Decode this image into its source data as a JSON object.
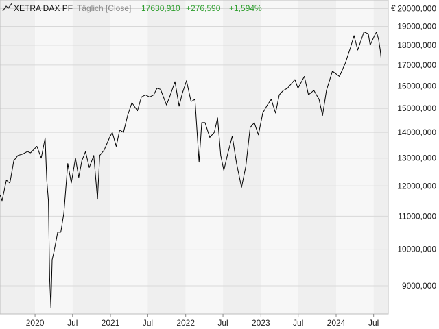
{
  "header": {
    "icon": "line-chart-icon",
    "instrument": "XETRA DAX PF",
    "interval": "Täglich [Close]",
    "last_value": "17630,910",
    "change_abs": "+276,590",
    "change_pct": "+1,594%"
  },
  "colors": {
    "positive": "#2e9e2e",
    "muted": "#888888",
    "band_dark": "#efefef",
    "band_light": "#f7f7f7",
    "grid": "#d8d8d8",
    "line": "#000000"
  },
  "chart_data": {
    "type": "line",
    "title": "",
    "xlabel": "",
    "ylabel": "€",
    "y_scale": "log",
    "ylim": [
      8300,
      20500
    ],
    "x_range": [
      "2019-07-15",
      "2024-09-10"
    ],
    "y_ticks": [
      {
        "value": 9000,
        "label": "9000,000"
      },
      {
        "value": 10000,
        "label": "10000,000"
      },
      {
        "value": 11000,
        "label": "11000,000"
      },
      {
        "value": 12000,
        "label": "12000,000"
      },
      {
        "value": 13000,
        "label": "13000,000"
      },
      {
        "value": 14000,
        "label": "14000,000"
      },
      {
        "value": 15000,
        "label": "15000,000"
      },
      {
        "value": 16000,
        "label": "16000,000"
      },
      {
        "value": 17000,
        "label": "17000,000"
      },
      {
        "value": 18000,
        "label": "18000,000"
      },
      {
        "value": 19000,
        "label": "19000,000"
      },
      {
        "value": 20000,
        "label": "20000,000"
      }
    ],
    "x_ticks": [
      {
        "date": "2020-01-01",
        "label": "2020"
      },
      {
        "date": "2020-07-01",
        "label": "Jul"
      },
      {
        "date": "2021-01-01",
        "label": "2021"
      },
      {
        "date": "2021-07-01",
        "label": "Jul"
      },
      {
        "date": "2022-01-01",
        "label": "2022"
      },
      {
        "date": "2022-07-01",
        "label": "Jul"
      },
      {
        "date": "2023-01-01",
        "label": "2023"
      },
      {
        "date": "2023-07-01",
        "label": "Jul"
      },
      {
        "date": "2024-01-01",
        "label": "2024"
      },
      {
        "date": "2024-07-01",
        "label": "Jul"
      }
    ],
    "series": [
      {
        "values": [
          [
            "2019-07-15",
            11700
          ],
          [
            "2019-07-25",
            11500
          ],
          [
            "2019-08-15",
            12200
          ],
          [
            "2019-09-01",
            12100
          ],
          [
            "2019-09-20",
            12900
          ],
          [
            "2019-10-10",
            13100
          ],
          [
            "2019-11-01",
            13150
          ],
          [
            "2019-11-25",
            13250
          ],
          [
            "2019-12-10",
            13200
          ],
          [
            "2020-01-10",
            13450
          ],
          [
            "2020-01-31",
            13000
          ],
          [
            "2020-02-19",
            13780
          ],
          [
            "2020-02-27",
            12200
          ],
          [
            "2020-03-06",
            11500
          ],
          [
            "2020-03-12",
            9200
          ],
          [
            "2020-03-18",
            8450
          ],
          [
            "2020-03-24",
            9700
          ],
          [
            "2020-04-01",
            9900
          ],
          [
            "2020-04-20",
            10500
          ],
          [
            "2020-05-05",
            10500
          ],
          [
            "2020-05-20",
            11100
          ],
          [
            "2020-06-08",
            12800
          ],
          [
            "2020-06-25",
            12100
          ],
          [
            "2020-07-15",
            13000
          ],
          [
            "2020-07-31",
            12300
          ],
          [
            "2020-08-15",
            12900
          ],
          [
            "2020-09-02",
            13250
          ],
          [
            "2020-09-20",
            12650
          ],
          [
            "2020-10-12",
            13100
          ],
          [
            "2020-10-30",
            11550
          ],
          [
            "2020-11-10",
            13100
          ],
          [
            "2020-12-01",
            13300
          ],
          [
            "2020-12-28",
            13800
          ],
          [
            "2021-01-10",
            14000
          ],
          [
            "2021-01-29",
            13450
          ],
          [
            "2021-02-15",
            14100
          ],
          [
            "2021-03-05",
            14000
          ],
          [
            "2021-03-25",
            14700
          ],
          [
            "2021-04-15",
            15250
          ],
          [
            "2021-05-12",
            14900
          ],
          [
            "2021-05-31",
            15500
          ],
          [
            "2021-06-20",
            15600
          ],
          [
            "2021-07-10",
            15500
          ],
          [
            "2021-07-30",
            15600
          ],
          [
            "2021-08-15",
            15900
          ],
          [
            "2021-09-01",
            15850
          ],
          [
            "2021-09-30",
            15150
          ],
          [
            "2021-10-15",
            15500
          ],
          [
            "2021-11-10",
            16200
          ],
          [
            "2021-11-30",
            15100
          ],
          [
            "2021-12-15",
            15650
          ],
          [
            "2022-01-05",
            16250
          ],
          [
            "2022-01-27",
            15300
          ],
          [
            "2022-02-15",
            15400
          ],
          [
            "2022-03-07",
            12850
          ],
          [
            "2022-03-20",
            14400
          ],
          [
            "2022-04-05",
            14400
          ],
          [
            "2022-04-28",
            13800
          ],
          [
            "2022-05-20",
            14000
          ],
          [
            "2022-06-05",
            14600
          ],
          [
            "2022-06-20",
            13100
          ],
          [
            "2022-07-05",
            12550
          ],
          [
            "2022-07-25",
            13200
          ],
          [
            "2022-08-15",
            13850
          ],
          [
            "2022-09-05",
            12800
          ],
          [
            "2022-09-29",
            11950
          ],
          [
            "2022-10-20",
            12700
          ],
          [
            "2022-11-10",
            14200
          ],
          [
            "2022-11-30",
            14400
          ],
          [
            "2022-12-20",
            13900
          ],
          [
            "2023-01-10",
            14800
          ],
          [
            "2023-02-01",
            15150
          ],
          [
            "2023-02-20",
            15400
          ],
          [
            "2023-03-13",
            14800
          ],
          [
            "2023-03-31",
            15600
          ],
          [
            "2023-04-20",
            15800
          ],
          [
            "2023-05-10",
            15900
          ],
          [
            "2023-06-15",
            16300
          ],
          [
            "2023-06-30",
            15900
          ],
          [
            "2023-07-31",
            16450
          ],
          [
            "2023-08-20",
            15600
          ],
          [
            "2023-09-15",
            15800
          ],
          [
            "2023-10-10",
            15400
          ],
          [
            "2023-10-27",
            14700
          ],
          [
            "2023-11-15",
            15800
          ],
          [
            "2023-12-14",
            16700
          ],
          [
            "2024-01-17",
            16450
          ],
          [
            "2024-02-15",
            17100
          ],
          [
            "2024-03-10",
            17850
          ],
          [
            "2024-03-28",
            18500
          ],
          [
            "2024-04-15",
            17750
          ],
          [
            "2024-05-15",
            18700
          ],
          [
            "2024-06-05",
            18600
          ],
          [
            "2024-06-14",
            18000
          ],
          [
            "2024-07-05",
            18500
          ],
          [
            "2024-07-15",
            18700
          ],
          [
            "2024-07-25",
            18300
          ],
          [
            "2024-08-02",
            17750
          ],
          [
            "2024-08-06",
            17350
          ]
        ]
      }
    ]
  }
}
